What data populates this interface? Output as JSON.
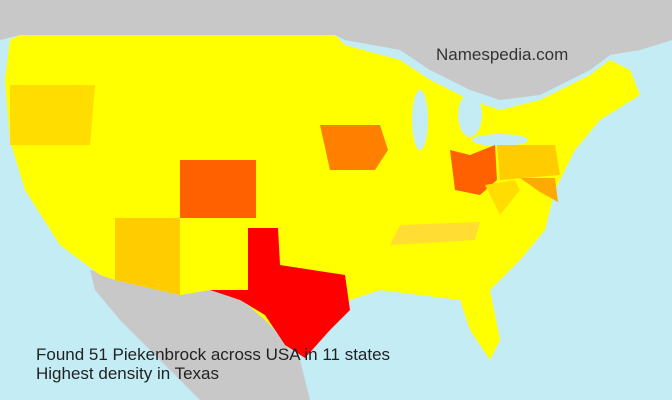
{
  "brand": "Namespedia.com",
  "caption": {
    "line1": "Found 51 Piekenbrock across USA in 11 states",
    "line2": "Highest density in Texas"
  },
  "colors": {
    "water": "#c4ecf5",
    "neighbor_land": "#c8c8c8",
    "base_state": "#ffff00",
    "highest": "#ff0000"
  },
  "highlighted_states": [
    {
      "name": "Texas",
      "color": "#ff0000"
    },
    {
      "name": "Colorado",
      "color": "#ff6000"
    },
    {
      "name": "Ohio",
      "color": "#ff6000"
    },
    {
      "name": "Iowa",
      "color": "#ff8000"
    },
    {
      "name": "Maryland",
      "color": "#ffaa00"
    },
    {
      "name": "Arizona",
      "color": "#ffcc00"
    },
    {
      "name": "Pennsylvania",
      "color": "#ffcc00"
    },
    {
      "name": "Oregon",
      "color": "#ffdd00"
    },
    {
      "name": "West Virginia",
      "color": "#ffdd00"
    },
    {
      "name": "Tennessee",
      "color": "#ffdd33"
    }
  ]
}
